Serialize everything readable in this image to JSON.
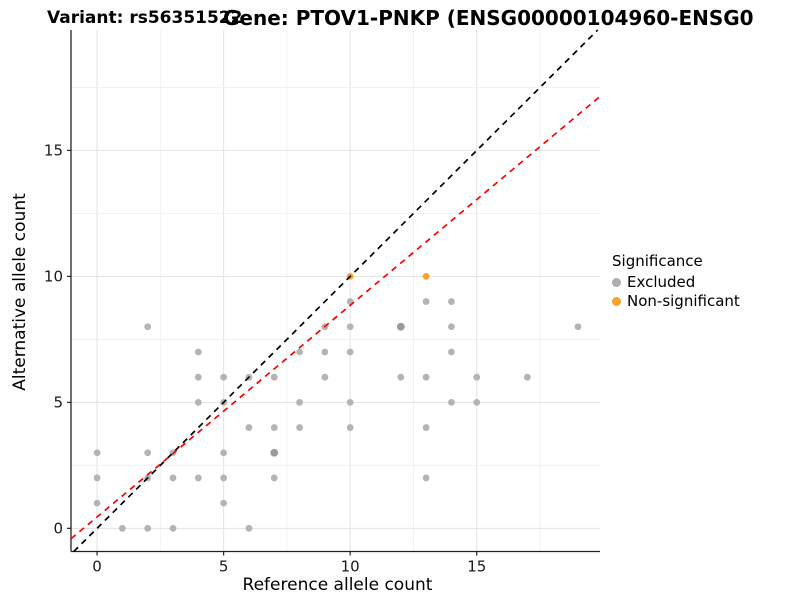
{
  "titles": {
    "variant": "Variant: rs56351522",
    "gene": "Gene: PTOV1-PNKP (ENSG00000104960-ENSG0"
  },
  "chart_data": {
    "type": "scatter",
    "xlabel": "Reference allele count",
    "ylabel": "Alternative allele count",
    "x_ticks": [
      0,
      5,
      10,
      15
    ],
    "y_ticks": [
      0,
      5,
      10,
      15
    ],
    "xlim": [
      -1.03,
      19.87
    ],
    "ylim": [
      -0.92,
      19.78
    ],
    "grid": {
      "major_step": 5,
      "minor_step": 2.5,
      "grid_on": true
    },
    "legend": {
      "title": "Significance",
      "position": "right",
      "items": [
        {
          "label": "Excluded",
          "color": "#ADADAD"
        },
        {
          "label": "Non-significant",
          "color": "#F8A229"
        }
      ]
    },
    "series": [
      {
        "name": "Excluded",
        "color": "#B4B4B4",
        "points": [
          [
            0,
            1
          ],
          [
            0,
            2
          ],
          [
            0,
            3
          ],
          [
            1,
            0
          ],
          [
            2,
            0
          ],
          [
            2,
            2
          ],
          [
            2,
            3
          ],
          [
            2,
            8
          ],
          [
            3,
            0
          ],
          [
            3,
            2
          ],
          [
            3,
            3
          ],
          [
            4,
            2
          ],
          [
            4,
            5
          ],
          [
            4,
            6
          ],
          [
            4,
            7
          ],
          [
            5,
            1
          ],
          [
            5,
            2
          ],
          [
            5,
            3
          ],
          [
            5,
            5
          ],
          [
            5,
            6
          ],
          [
            6,
            0
          ],
          [
            6,
            4
          ],
          [
            6,
            6
          ],
          [
            7,
            2
          ],
          [
            7,
            4
          ],
          [
            7,
            6
          ],
          [
            8,
            4
          ],
          [
            8,
            5
          ],
          [
            8,
            7
          ],
          [
            9,
            6
          ],
          [
            9,
            7
          ],
          [
            9,
            8
          ],
          [
            10,
            4
          ],
          [
            10,
            5
          ],
          [
            10,
            7
          ],
          [
            10,
            8
          ],
          [
            10,
            9
          ],
          [
            12,
            6
          ],
          [
            13,
            2
          ],
          [
            13,
            4
          ],
          [
            13,
            6
          ],
          [
            13,
            9
          ],
          [
            14,
            5
          ],
          [
            14,
            7
          ],
          [
            14,
            8
          ],
          [
            14,
            9
          ],
          [
            15,
            5
          ],
          [
            15,
            6
          ],
          [
            17,
            6
          ],
          [
            19,
            8
          ]
        ],
        "overlapping_points": [
          [
            7,
            3
          ],
          [
            12,
            8
          ]
        ],
        "overlap_color": "#9A9A9A"
      },
      {
        "name": "Non-significant",
        "color": "#F8A229",
        "points": [
          [
            10,
            10
          ],
          [
            13,
            10
          ]
        ],
        "overlapping_points": [],
        "overlap_color": "#F8A229"
      }
    ],
    "lines": [
      {
        "name": "identity-line",
        "color": "#000000",
        "style": "dashed",
        "slope": 1,
        "intercept": 0
      },
      {
        "name": "fit-line",
        "color": "#FF0000",
        "style": "dashed",
        "slope": 0.84,
        "intercept": 0.45
      }
    ]
  }
}
